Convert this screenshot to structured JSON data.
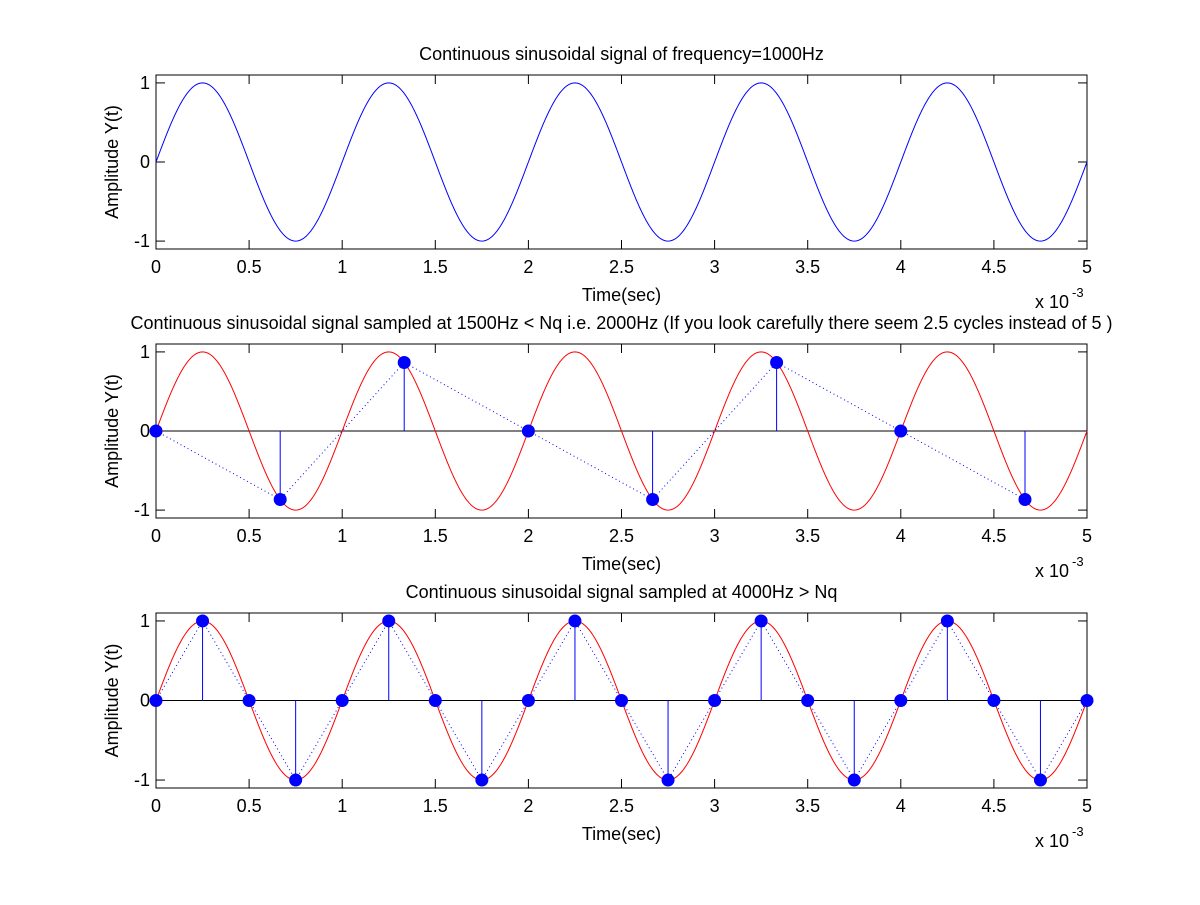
{
  "figure": {
    "background": "#ffffff",
    "colors": {
      "continuous_blue": "#0000ff",
      "continuous_red": "#ff0000",
      "samples": "#0000ff",
      "axis": "#000000"
    }
  },
  "chart_data": [
    {
      "type": "line",
      "title": "Continuous sinusoidal signal of frequency=1000Hz",
      "xlabel": "Time(sec)",
      "ylabel": "Amplitude Y(t)",
      "x_exponent_label": "x 10",
      "x_exponent_power": "-3",
      "xlim": [
        0,
        0.005
      ],
      "ylim": [
        -1.1,
        1.1
      ],
      "xticks": [
        0,
        0.5,
        1,
        1.5,
        2,
        2.5,
        3,
        3.5,
        4,
        4.5,
        5
      ],
      "xtick_labels": [
        "0",
        "0.5",
        "1",
        "1.5",
        "2",
        "2.5",
        "3",
        "3.5",
        "4",
        "4.5",
        "5"
      ],
      "yticks": [
        -1,
        0,
        1
      ],
      "ytick_labels": [
        "-1",
        "0",
        "1"
      ],
      "grid": false,
      "continuous": {
        "frequency_hz": 1000,
        "amplitude": 1,
        "function": "sin",
        "color": "#0000ff"
      }
    },
    {
      "type": "line",
      "title": "Continuous sinusoidal signal sampled at 1500Hz < Nq i.e. 2000Hz (If you look carefully there seem 2.5 cycles instead of 5 )",
      "xlabel": "Time(sec)",
      "ylabel": "Amplitude Y(t)",
      "x_exponent_label": "x 10",
      "x_exponent_power": "-3",
      "xlim": [
        0,
        0.005
      ],
      "ylim": [
        -1.1,
        1.1
      ],
      "xticks": [
        0,
        0.5,
        1,
        1.5,
        2,
        2.5,
        3,
        3.5,
        4,
        4.5,
        5
      ],
      "xtick_labels": [
        "0",
        "0.5",
        "1",
        "1.5",
        "2",
        "2.5",
        "3",
        "3.5",
        "4",
        "4.5",
        "5"
      ],
      "yticks": [
        -1,
        0,
        1
      ],
      "ytick_labels": [
        "-1",
        "0",
        "1"
      ],
      "grid": false,
      "continuous": {
        "frequency_hz": 1000,
        "amplitude": 1,
        "function": "sin",
        "color": "#ff0000"
      },
      "samples": {
        "sampling_rate_hz": 1500,
        "color": "#0000ff",
        "x": [
          0,
          0.000667,
          0.001333,
          0.002,
          0.002667,
          0.003333,
          0.004,
          0.004667
        ],
        "y": [
          0,
          -0.866,
          0.866,
          0,
          -0.866,
          0.866,
          0,
          -0.866
        ]
      }
    },
    {
      "type": "line",
      "title": "Continuous sinusoidal signal sampled at 4000Hz > Nq",
      "xlabel": "Time(sec)",
      "ylabel": "Amplitude Y(t)",
      "x_exponent_label": "x 10",
      "x_exponent_power": "-3",
      "xlim": [
        0,
        0.005
      ],
      "ylim": [
        -1.1,
        1.1
      ],
      "xticks": [
        0,
        0.5,
        1,
        1.5,
        2,
        2.5,
        3,
        3.5,
        4,
        4.5,
        5
      ],
      "xtick_labels": [
        "0",
        "0.5",
        "1",
        "1.5",
        "2",
        "2.5",
        "3",
        "3.5",
        "4",
        "4.5",
        "5"
      ],
      "yticks": [
        -1,
        0,
        1
      ],
      "ytick_labels": [
        "-1",
        "0",
        "1"
      ],
      "grid": false,
      "continuous": {
        "frequency_hz": 1000,
        "amplitude": 1,
        "function": "sin",
        "color": "#ff0000"
      },
      "samples": {
        "sampling_rate_hz": 4000,
        "color": "#0000ff",
        "x": [
          0,
          0.00025,
          0.0005,
          0.00075,
          0.001,
          0.00125,
          0.0015,
          0.00175,
          0.002,
          0.00225,
          0.0025,
          0.00275,
          0.003,
          0.00325,
          0.0035,
          0.00375,
          0.004,
          0.00425,
          0.0045,
          0.00475,
          0.005
        ],
        "y": [
          0,
          1,
          0,
          -1,
          0,
          1,
          0,
          -1,
          0,
          1,
          0,
          -1,
          0,
          1,
          0,
          -1,
          0,
          1,
          0,
          -1,
          0
        ]
      }
    }
  ]
}
